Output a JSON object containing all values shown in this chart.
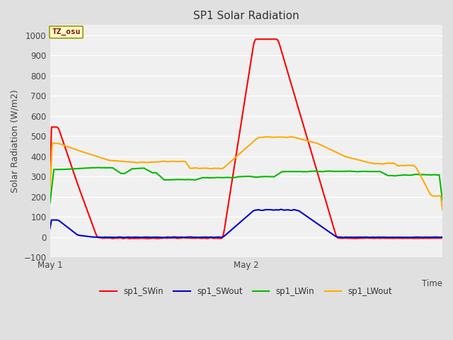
{
  "title": "SP1 Solar Radiation",
  "ylabel": "Solar Radiation (W/m2)",
  "x_end_label": "Time",
  "ylim": [
    -100,
    1050
  ],
  "yticks": [
    -100,
    0,
    100,
    200,
    300,
    400,
    500,
    600,
    700,
    800,
    900,
    1000
  ],
  "xtick_labels": [
    "May 1",
    "May 2"
  ],
  "xtick_positions": [
    0.0,
    0.5
  ],
  "fig_bg": "#e0e0e0",
  "plot_bg": "#f0f0f0",
  "grid_color": "#ffffff",
  "tz_label": "TZ_osu",
  "tz_box_facecolor": "#ffffcc",
  "tz_text_color": "#8b0000",
  "tz_box_edgecolor": "#999900",
  "colors": {
    "sp1_SWin": "#ff0000",
    "sp1_SWout": "#0000cc",
    "sp1_LWin": "#00bb00",
    "sp1_LWout": "#ffaa00"
  },
  "linewidth": 1.5,
  "legend_entries": [
    "sp1_SWin",
    "sp1_SWout",
    "sp1_LWin",
    "sp1_LWout"
  ]
}
